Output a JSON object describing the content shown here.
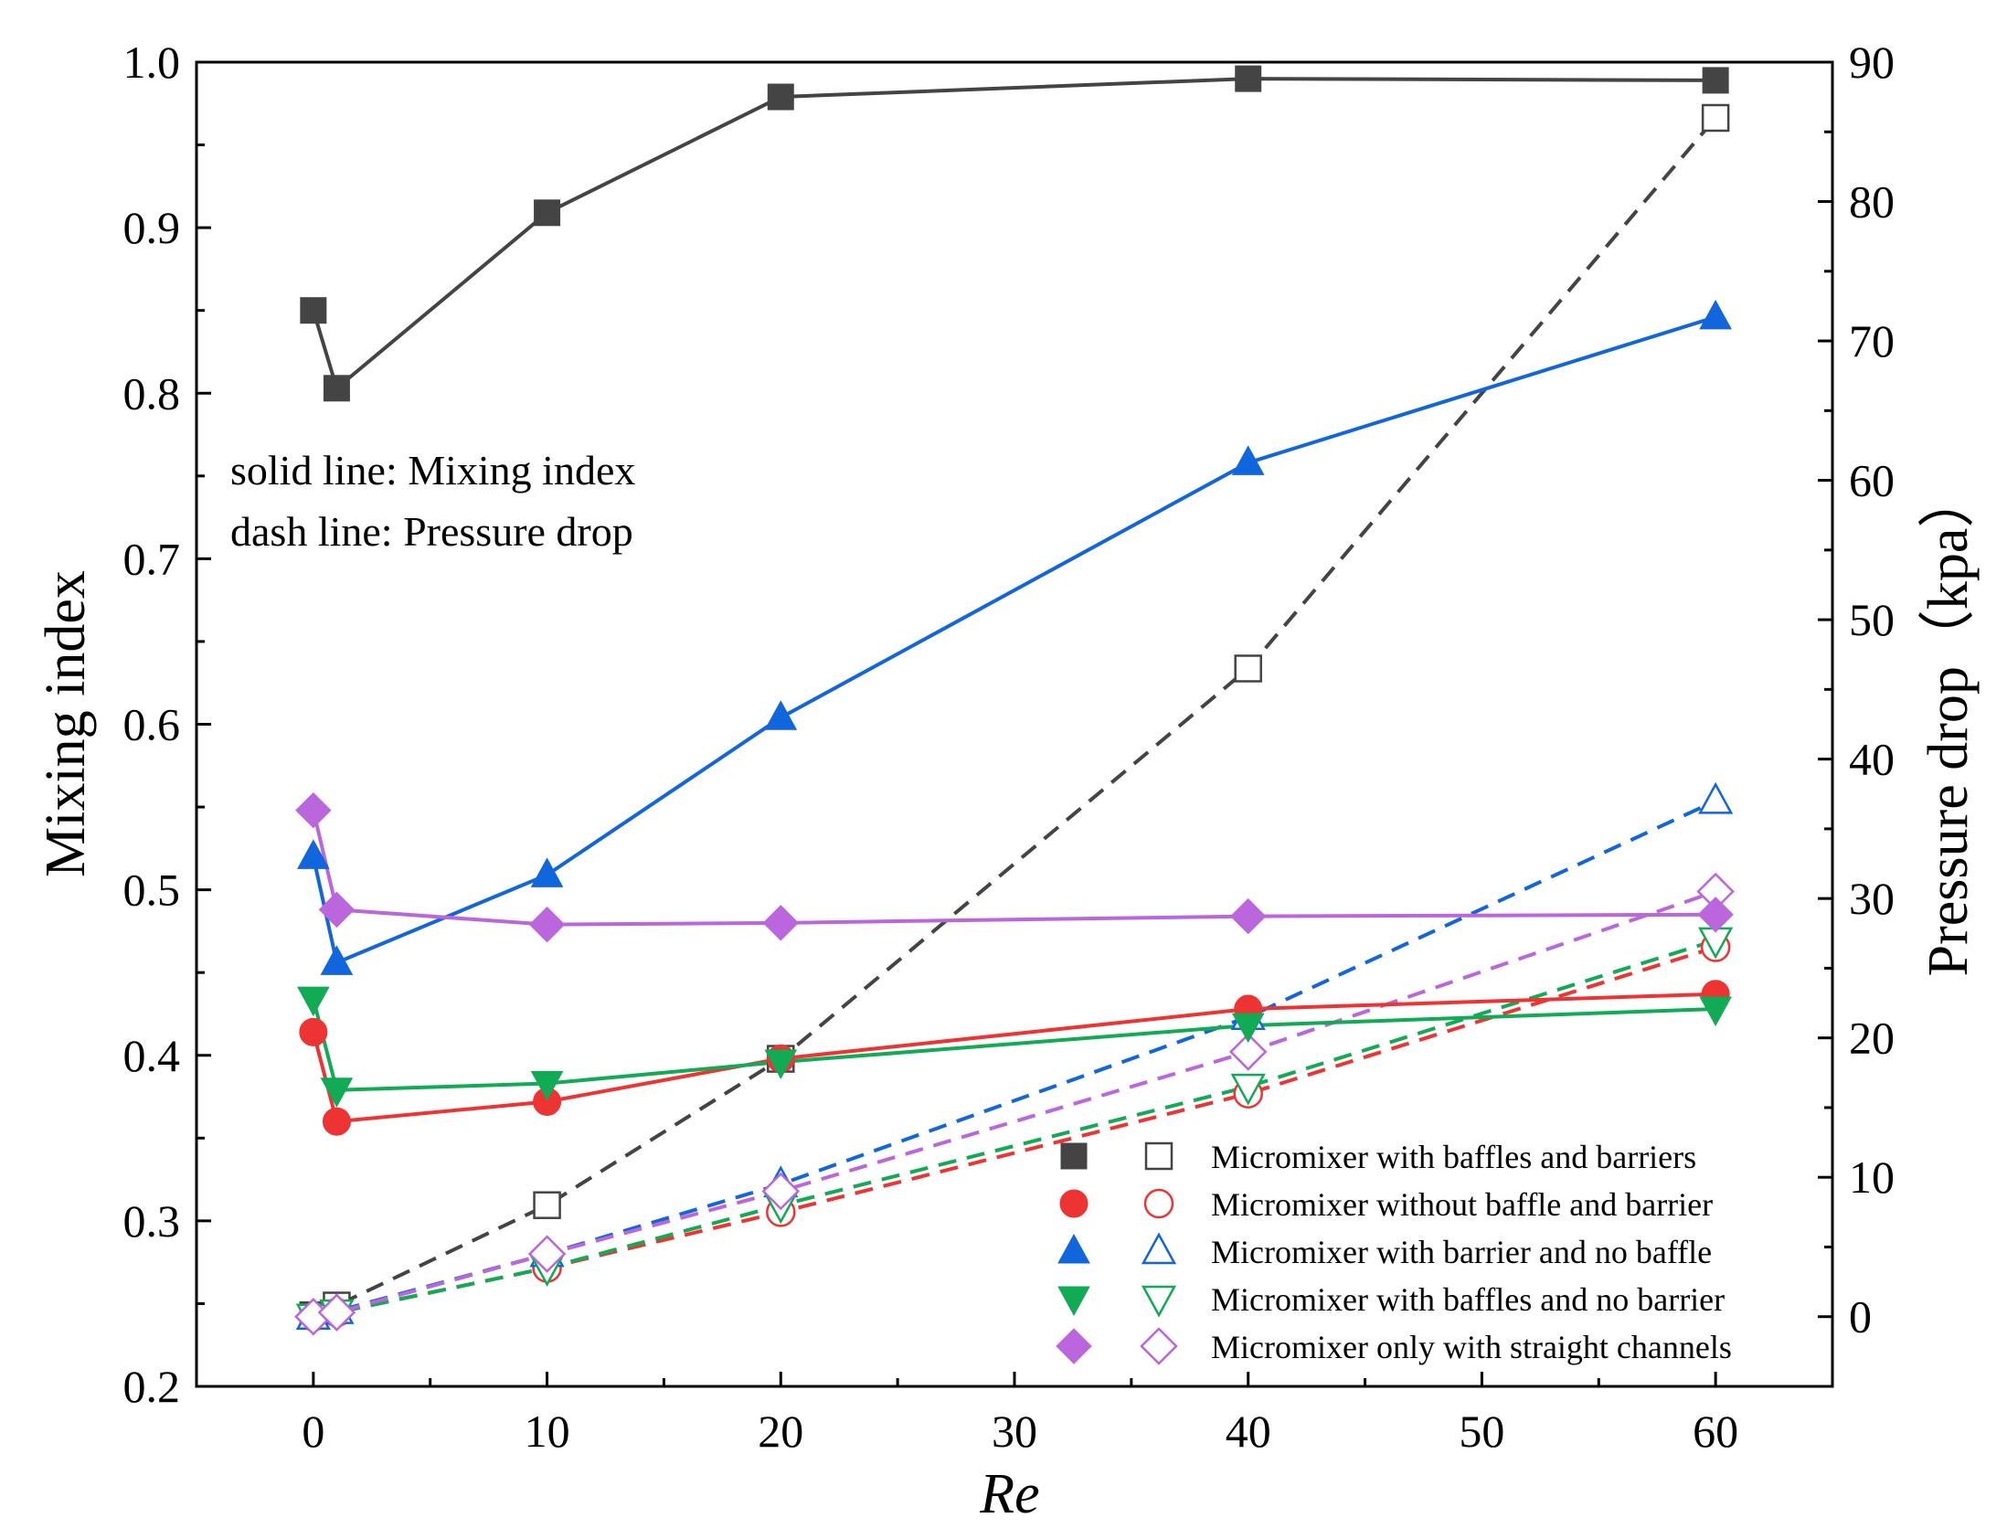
{
  "chart_data": {
    "type": "line",
    "x": [
      0,
      1,
      10,
      20,
      40,
      60
    ],
    "xlabel": "Re",
    "ylabel_left": "Mixing index",
    "ylabel_right": "Pressure drop（kpa）",
    "xlim": [
      -5,
      65
    ],
    "ylim_left": [
      0.2,
      1.0
    ],
    "ylim_right": [
      -5,
      90
    ],
    "x_ticks": [
      0,
      10,
      20,
      30,
      40,
      50,
      60
    ],
    "y_ticks_left": [
      0.2,
      0.3,
      0.4,
      0.5,
      0.6,
      0.7,
      0.8,
      0.9,
      1.0
    ],
    "y_ticks_right": [
      0,
      10,
      20,
      30,
      40,
      50,
      60,
      70,
      80,
      90
    ],
    "annotation": [
      "solid line: Mixing index",
      "dash line: Pressure drop"
    ],
    "legend_position": "bottom-right",
    "series": [
      {
        "name": "Micromixer with baffles and barriers",
        "color": "#444444",
        "marker": "square",
        "mixing_index": [
          0.85,
          0.803,
          0.909,
          0.979,
          0.99,
          0.989
        ],
        "pressure_drop": [
          0.1,
          0.8,
          8.0,
          18.5,
          46.5,
          86.0
        ]
      },
      {
        "name": "Micromixer without baffle and barrier",
        "color": "#ee3333",
        "marker": "circle",
        "mixing_index": [
          0.414,
          0.36,
          0.372,
          0.398,
          0.428,
          0.437
        ],
        "pressure_drop": [
          0.0,
          0.3,
          3.5,
          7.5,
          16.0,
          26.5
        ]
      },
      {
        "name": "Micromixer with barrier and no baffle",
        "color": "#1166dd",
        "marker": "triangle-up",
        "mixing_index": [
          0.52,
          0.456,
          0.509,
          0.604,
          0.758,
          0.846
        ],
        "pressure_drop": [
          0.0,
          0.4,
          4.5,
          9.5,
          21.5,
          37.0
        ]
      },
      {
        "name": "Micromixer with baffles and no barrier",
        "color": "#11aa55",
        "marker": "triangle-down",
        "mixing_index": [
          0.434,
          0.379,
          0.383,
          0.396,
          0.418,
          0.428
        ],
        "pressure_drop": [
          0.0,
          0.3,
          3.5,
          8.0,
          16.5,
          27.0
        ]
      },
      {
        "name": "Micromixer only with straight channels",
        "color": "#bb66dd",
        "marker": "diamond",
        "mixing_index": [
          0.548,
          0.488,
          0.479,
          0.48,
          0.484,
          0.485
        ],
        "pressure_drop": [
          0.0,
          0.3,
          4.5,
          9.0,
          19.0,
          30.5
        ]
      }
    ]
  }
}
